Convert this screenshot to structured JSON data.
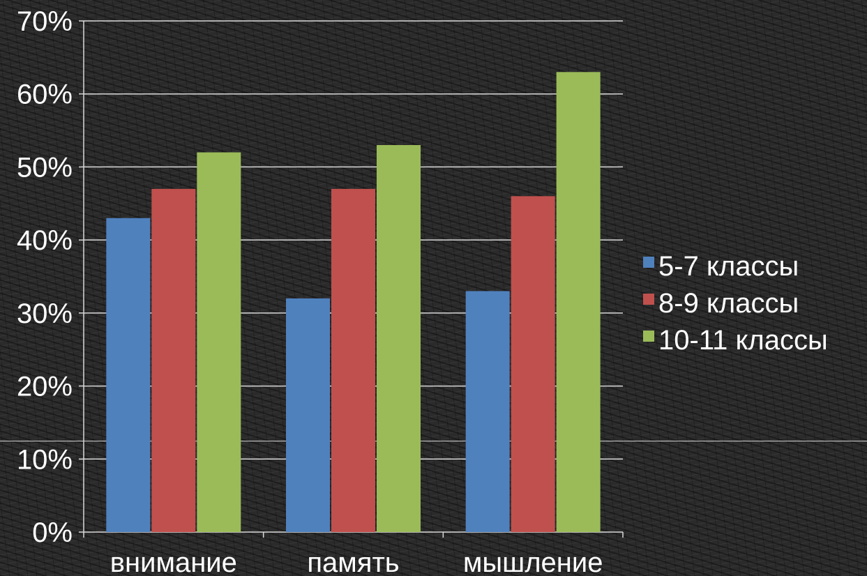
{
  "chart_data": {
    "type": "bar",
    "categories": [
      "внимание",
      "память",
      "мышление"
    ],
    "series": [
      {
        "name": "5-7 классы",
        "values": [
          43,
          32,
          33
        ],
        "color": "#4f81bd"
      },
      {
        "name": "8-9 классы",
        "values": [
          47,
          47,
          46
        ],
        "color": "#c0504d"
      },
      {
        "name": "10-11 классы",
        "values": [
          52,
          53,
          63
        ],
        "color": "#9bbb59"
      }
    ],
    "ylim": [
      0,
      70
    ],
    "yticks": [
      "0%",
      "10%",
      "20%",
      "30%",
      "40%",
      "50%",
      "60%",
      "70%"
    ],
    "grid": true,
    "legend_position": "right",
    "colors": {
      "grid": "#d9d9d9",
      "text": "#ffffff"
    }
  }
}
